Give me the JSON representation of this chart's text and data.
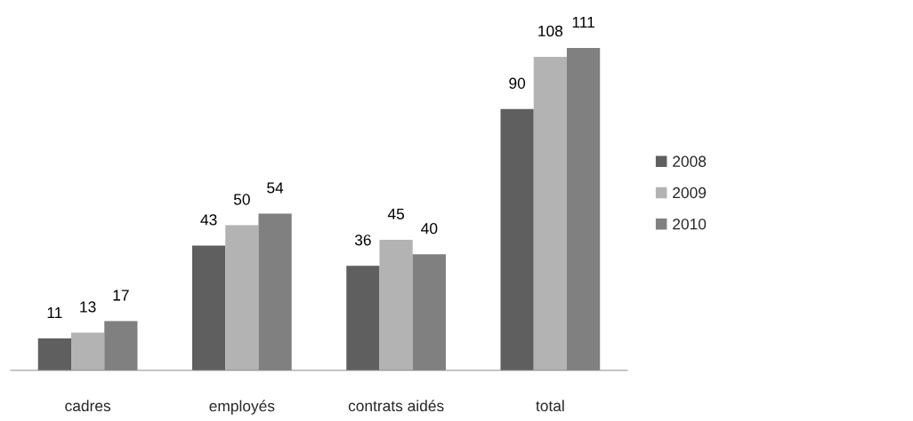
{
  "chart_data": {
    "type": "bar",
    "categories": [
      "cadres",
      "employés",
      "contrats aidés",
      "total"
    ],
    "series": [
      {
        "name": "2008",
        "color": "#5f5f5f",
        "values": [
          11,
          43,
          36,
          90
        ]
      },
      {
        "name": "2009",
        "color": "#b3b3b3",
        "values": [
          13,
          50,
          45,
          108
        ]
      },
      {
        "name": "2010",
        "color": "#808080",
        "values": [
          17,
          54,
          40,
          111
        ]
      }
    ],
    "data_labels": true,
    "legend": "right",
    "grid": false
  }
}
